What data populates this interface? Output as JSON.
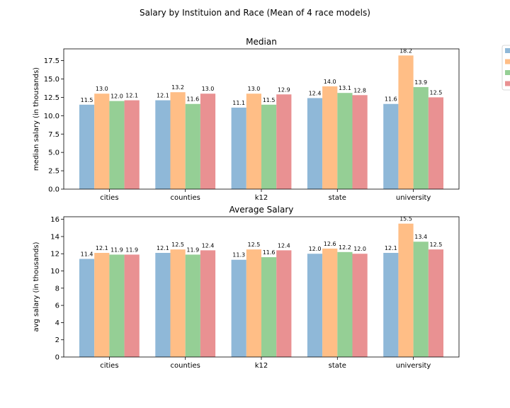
{
  "figure": {
    "suptitle": "Salary by Instituion and Race (Mean of 4 race models)"
  },
  "colors": {
    "series": [
      "#8fb8d8",
      "#ffbe86",
      "#95cf95",
      "#e99192"
    ]
  },
  "chart_data": [
    {
      "type": "bar",
      "title": "Median",
      "xlabel": "",
      "ylabel": "median salary (in thousands)",
      "categories": [
        "cities",
        "counties",
        "k12",
        "state",
        "university"
      ],
      "ylim": [
        0,
        19.1
      ],
      "yticks": [
        "0.0",
        "2.5",
        "5.0",
        "7.5",
        "10.0",
        "12.5",
        "15.0",
        "17.5"
      ],
      "ytick_values": [
        0,
        2.5,
        5,
        7.5,
        10,
        12.5,
        15,
        17.5
      ],
      "grid": false,
      "legend": "upper right (cropped)",
      "series": [
        {
          "values": [
            11.5,
            12.1,
            11.1,
            12.4,
            11.6
          ],
          "labels": [
            "11.5",
            "12.1",
            "11.1",
            "12.4",
            "11.6"
          ]
        },
        {
          "values": [
            13.0,
            13.2,
            13.0,
            14.0,
            18.2
          ],
          "labels": [
            "13.0",
            "13.2",
            "13.0",
            "14.0",
            "18.2"
          ]
        },
        {
          "values": [
            12.0,
            11.6,
            11.5,
            13.1,
            13.9
          ],
          "labels": [
            "12.0",
            "11.6",
            "11.5",
            "13.1",
            "13.9"
          ]
        },
        {
          "values": [
            12.1,
            13.0,
            12.9,
            12.8,
            12.5
          ],
          "labels": [
            "12.1",
            "13.0",
            "12.9",
            "12.8",
            "12.5"
          ]
        }
      ]
    },
    {
      "type": "bar",
      "title": "Average Salary",
      "xlabel": "",
      "ylabel": "avg salary (in thousands)",
      "categories": [
        "cities",
        "counties",
        "k12",
        "state",
        "university"
      ],
      "ylim": [
        0,
        16.3
      ],
      "yticks": [
        "0",
        "2",
        "4",
        "6",
        "8",
        "10",
        "12",
        "14",
        "16"
      ],
      "ytick_values": [
        0,
        2,
        4,
        6,
        8,
        10,
        12,
        14,
        16
      ],
      "grid": false,
      "series": [
        {
          "values": [
            11.4,
            12.1,
            11.3,
            12.0,
            12.1
          ],
          "labels": [
            "11.4",
            "12.1",
            "11.3",
            "12.0",
            "12.1"
          ]
        },
        {
          "values": [
            12.1,
            12.5,
            12.5,
            12.6,
            15.5
          ],
          "labels": [
            "12.1",
            "12.5",
            "12.5",
            "12.6",
            "15.5"
          ]
        },
        {
          "values": [
            11.9,
            11.9,
            11.6,
            12.2,
            13.4
          ],
          "labels": [
            "11.9",
            "11.9",
            "11.6",
            "12.2",
            "13.4"
          ]
        },
        {
          "values": [
            11.9,
            12.4,
            12.4,
            12.0,
            12.5
          ],
          "labels": [
            "11.9",
            "12.4",
            "12.4",
            "12.0",
            "12.5"
          ]
        }
      ]
    }
  ]
}
